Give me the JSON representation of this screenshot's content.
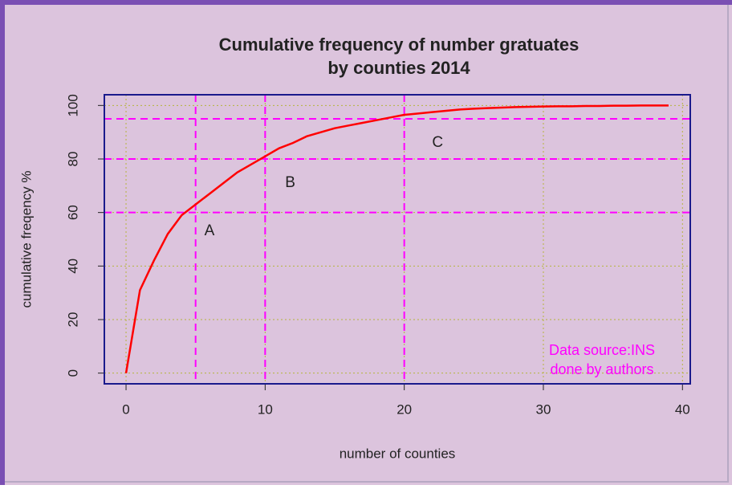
{
  "chart_data": {
    "type": "line",
    "title": [
      "Cumulative frequency of number gratuates",
      "by counties 2014"
    ],
    "xlabel": "number of counties",
    "ylabel": "cumulative freqency %",
    "x": [
      0,
      1,
      2,
      3,
      4,
      5,
      6,
      7,
      8,
      9,
      10,
      11,
      12,
      13,
      14,
      15,
      16,
      17,
      18,
      19,
      20,
      21,
      22,
      23,
      24,
      25,
      26,
      27,
      28,
      29,
      30,
      31,
      32,
      33,
      34,
      35,
      36,
      37,
      38,
      39
    ],
    "values": [
      0,
      31,
      42,
      52,
      59,
      63,
      67,
      71,
      75,
      78,
      81,
      84,
      86,
      88.5,
      90,
      91.5,
      92.5,
      93.5,
      94.5,
      95.5,
      96.5,
      97,
      97.5,
      98,
      98.5,
      98.8,
      99,
      99.2,
      99.4,
      99.5,
      99.6,
      99.7,
      99.7,
      99.8,
      99.8,
      99.9,
      99.9,
      100,
      100,
      100
    ],
    "color": "#ff0000",
    "xlim": [
      -1.56,
      40.56
    ],
    "xticks": [
      0,
      10,
      20,
      30,
      40
    ],
    "ylim": [
      -4,
      104
    ],
    "yticks": [
      0,
      20,
      40,
      60,
      80,
      100
    ],
    "grid": true,
    "ref_color": "#ff00ff",
    "vlines": [
      5,
      10,
      20
    ],
    "hlines": [
      60,
      80,
      95
    ],
    "annotations": [
      {
        "text": "A",
        "x": 6.0,
        "y": 53
      },
      {
        "text": "B",
        "x": 11.8,
        "y": 71
      },
      {
        "text": "C",
        "x": 22.4,
        "y": 86
      }
    ],
    "source_note": [
      "Data source:INS",
      "done by authors"
    ]
  }
}
